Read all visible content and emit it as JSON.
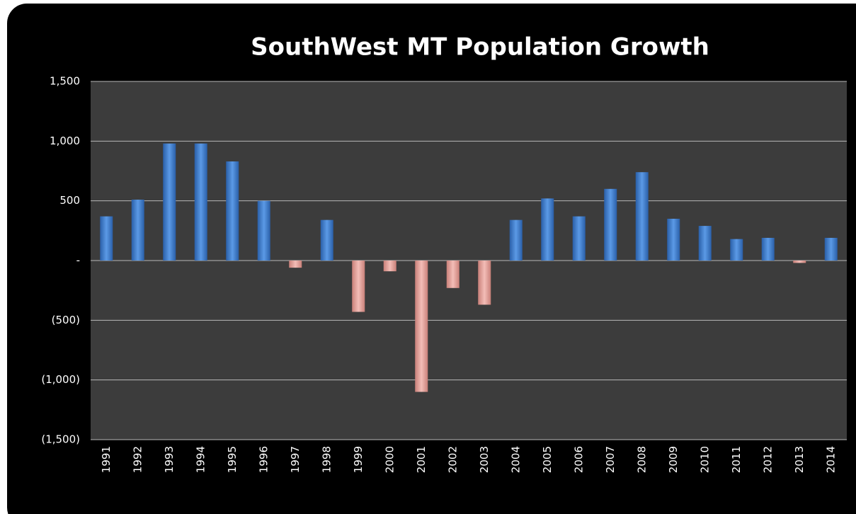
{
  "chart_data": {
    "type": "bar",
    "title": "SouthWest MT Population Growth",
    "categories": [
      "1991",
      "1992",
      "1993",
      "1994",
      "1995",
      "1996",
      "1997",
      "1998",
      "1999",
      "2000",
      "2001",
      "2002",
      "2003",
      "2004",
      "2005",
      "2006",
      "2007",
      "2008",
      "2009",
      "2010",
      "2011",
      "2012",
      "2013",
      "2014"
    ],
    "values": [
      370,
      510,
      980,
      980,
      830,
      500,
      -60,
      340,
      -430,
      -90,
      -1100,
      -230,
      -370,
      340,
      520,
      370,
      600,
      740,
      350,
      290,
      180,
      190,
      -20,
      190
    ],
    "positive_color": "#3f7fd0",
    "negative_color": "#e8a29c",
    "ylim": [
      -1500,
      1500
    ],
    "yticks": [
      {
        "value": -1500,
        "label": "(1,500)"
      },
      {
        "value": -1000,
        "label": "(1,000)"
      },
      {
        "value": -500,
        "label": "(500)"
      },
      {
        "value": 0,
        "label": "-"
      },
      500,
      {
        "value": 1000,
        "label": "1,000"
      },
      {
        "value": 1500,
        "label": "1,500"
      }
    ],
    "grid": true
  }
}
